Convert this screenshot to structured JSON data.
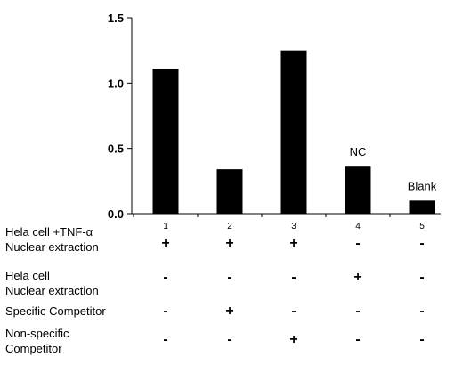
{
  "chart_data": {
    "type": "bar",
    "categories": [
      "1",
      "2",
      "3",
      "4",
      "5"
    ],
    "values": [
      1.11,
      0.34,
      1.25,
      0.36,
      0.1
    ],
    "ylim": [
      0,
      1.5
    ],
    "yticks": [
      "0.0",
      "0.5",
      "1.0",
      "1.5"
    ],
    "ytick_values": [
      0,
      0.5,
      1.0,
      1.5
    ],
    "bar_color": "#000000",
    "grid": false,
    "annotations": [
      {
        "category": "4",
        "text": "NC"
      },
      {
        "category": "5",
        "text": "Blank"
      }
    ]
  },
  "conditions": [
    {
      "label_lines": [
        "Hela cell +TNF-α",
        "Nuclear extraction"
      ],
      "marks": [
        "+",
        "+",
        "+",
        "-",
        "-"
      ]
    },
    {
      "label_lines": [
        "Hela cell",
        "Nuclear extraction"
      ],
      "marks": [
        "-",
        "-",
        "-",
        "+",
        "-"
      ]
    },
    {
      "label_lines": [
        "Specific Competitor"
      ],
      "marks": [
        "-",
        "+",
        "-",
        "-",
        "-"
      ]
    },
    {
      "label_lines": [
        "Non-specific",
        "Competitor"
      ],
      "marks": [
        "-",
        "-",
        "+",
        "-",
        "-"
      ]
    }
  ]
}
